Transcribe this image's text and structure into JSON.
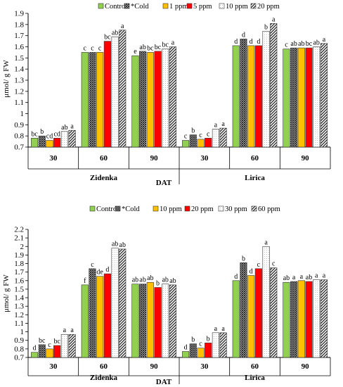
{
  "chart_data": [
    {
      "type": "bar",
      "ylabel": "μmol/ g FW",
      "xlabel": "DAT",
      "ylim": [
        0.7,
        1.9
      ],
      "yticks": [
        "0.7",
        "0.8",
        "0.9",
        "1",
        "1.1",
        "1.2",
        "1.3",
        "1.4",
        "1.5",
        "1.6",
        "1.7",
        "1.8",
        "1.9"
      ],
      "legend_position": "top",
      "categories": [
        "30",
        "60",
        "90",
        "30",
        "60",
        "90"
      ],
      "groups": [
        "Zidenka",
        "Lirica"
      ],
      "series": [
        {
          "name": "Control",
          "color": "#92d050",
          "pattern": "solid",
          "values": [
            0.78,
            1.55,
            1.52,
            0.76,
            1.61,
            1.58
          ],
          "labels": [
            "bc",
            "c",
            "e",
            "c",
            "d",
            "c"
          ]
        },
        {
          "name": "*Cold",
          "color": "#2f2f2f",
          "pattern": "crosshatch",
          "values": [
            0.8,
            1.55,
            1.56,
            0.81,
            1.67,
            1.59
          ],
          "labels": [
            "b",
            "c",
            "ab",
            "b",
            "d",
            "ab"
          ]
        },
        {
          "name": "1 ppm",
          "color": "#ffc000",
          "pattern": "solid",
          "values": [
            0.76,
            1.55,
            1.55,
            0.77,
            1.61,
            1.59
          ],
          "labels": [
            "cd",
            "c",
            "bc",
            "c",
            "d",
            "ab"
          ]
        },
        {
          "name": "5 ppm",
          "color": "#ff0000",
          "pattern": "solid",
          "values": [
            0.78,
            1.65,
            1.56,
            0.78,
            1.61,
            1.59
          ],
          "labels": [
            "cd",
            "bc",
            "bc",
            "c",
            "d",
            "bc"
          ]
        },
        {
          "name": "10 ppm",
          "color": "#e8e8e8",
          "pattern": "dots",
          "values": [
            0.84,
            1.69,
            1.58,
            0.86,
            1.74,
            1.6
          ],
          "labels": [
            "ab",
            "ab",
            "bc",
            "a",
            "b",
            "ab"
          ]
        },
        {
          "name": "20 ppm",
          "color": "#3a3a3a",
          "pattern": "diagonal",
          "values": [
            0.85,
            1.75,
            1.6,
            0.87,
            1.81,
            1.63
          ],
          "labels": [
            "a",
            "a",
            "a",
            "a",
            "a",
            "a"
          ]
        }
      ]
    },
    {
      "type": "bar",
      "ylabel": "μmol/ g FW",
      "xlabel": "DAT",
      "ylim": [
        0.7,
        2.2
      ],
      "yticks": [
        "0.7",
        "0.8",
        "0.9",
        "1",
        "1.1",
        "1.2",
        "1.3",
        "1.4",
        "1.5",
        "1.6",
        "1.7",
        "1.8",
        "1.9",
        "2",
        "2.1",
        "2.2"
      ],
      "legend_position": "top",
      "categories": [
        "30",
        "60",
        "90",
        "30",
        "60",
        "90"
      ],
      "groups": [
        "Zidenka",
        "Lirica"
      ],
      "series": [
        {
          "name": "Control",
          "color": "#92d050",
          "pattern": "solid",
          "values": [
            0.76,
            1.55,
            1.56,
            0.77,
            1.6,
            1.58
          ],
          "labels": [
            "d",
            "f",
            "ab",
            "d",
            "d",
            "ab"
          ]
        },
        {
          "name": "*Cold",
          "color": "#2f2f2f",
          "pattern": "crosshatch",
          "values": [
            0.85,
            1.74,
            1.56,
            0.86,
            1.81,
            1.59
          ],
          "labels": [
            "bc",
            "c",
            "ab",
            "b",
            "b",
            "a"
          ]
        },
        {
          "name": "10 ppm",
          "color": "#ffc000",
          "pattern": "solid",
          "values": [
            0.8,
            1.65,
            1.58,
            0.81,
            1.66,
            1.6
          ],
          "labels": [
            "c",
            "de",
            "ab",
            "c",
            "d",
            "a"
          ]
        },
        {
          "name": "20 ppm",
          "color": "#ff0000",
          "pattern": "solid",
          "values": [
            0.84,
            1.68,
            1.52,
            0.87,
            1.74,
            1.59
          ],
          "labels": [
            "bc",
            "d",
            "b",
            "b",
            "c",
            "ab"
          ]
        },
        {
          "name": "30 ppm",
          "color": "#e8e8e8",
          "pattern": "dots",
          "values": [
            0.97,
            1.98,
            1.56,
            0.99,
            2.0,
            1.61
          ],
          "labels": [
            "a",
            "ab",
            "ab",
            "a",
            "a",
            "a"
          ]
        },
        {
          "name": "60 ppm",
          "color": "#3a3a3a",
          "pattern": "diagonal",
          "values": [
            0.97,
            1.97,
            1.55,
            0.99,
            1.75,
            1.61
          ],
          "labels": [
            "a",
            "ab",
            "ab",
            "a",
            "c",
            "a"
          ]
        }
      ]
    }
  ]
}
